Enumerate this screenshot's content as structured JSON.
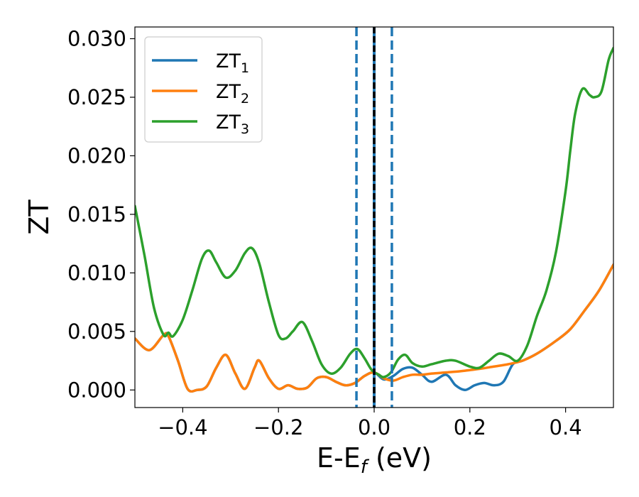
{
  "chart_data": {
    "type": "line",
    "xlabel": "E-E",
    "xlabel_sub": "f",
    "xlabel_unit": " (eV)",
    "ylabel": "ZT",
    "xlim": [
      -0.5,
      0.5
    ],
    "ylim": [
      -0.0015,
      0.031
    ],
    "xticks": [
      -0.4,
      -0.2,
      0.0,
      0.2,
      0.4
    ],
    "xtick_labels": [
      "−0.4",
      "−0.2",
      "0.0",
      "0.2",
      "0.4"
    ],
    "yticks": [
      0.0,
      0.005,
      0.01,
      0.015,
      0.02,
      0.025,
      0.03
    ],
    "ytick_labels": [
      "0.000",
      "0.005",
      "0.010",
      "0.015",
      "0.020",
      "0.025",
      "0.030"
    ],
    "grid": false,
    "legend_position": "top-left",
    "vlines": [
      {
        "x": -0.037,
        "style": "dashed",
        "color": "#1f77b4"
      },
      {
        "x": 0.0,
        "style": "solid",
        "color": "#1f77b4"
      },
      {
        "x": 0.0,
        "style": "dashed",
        "color": "#000000"
      },
      {
        "x": 0.037,
        "style": "dashed",
        "color": "#1f77b4"
      }
    ],
    "series": [
      {
        "name": "ZT",
        "name_sub": "1",
        "color": "#1f77b4",
        "points": [
          [
            -0.5,
            0.0044
          ],
          [
            -0.47,
            0.0034
          ],
          [
            -0.44,
            0.0047
          ],
          [
            -0.43,
            0.0046
          ],
          [
            -0.41,
            0.0025
          ],
          [
            -0.39,
            0.0001
          ],
          [
            -0.37,
            0.0
          ],
          [
            -0.35,
            0.0003
          ],
          [
            -0.33,
            0.0019
          ],
          [
            -0.31,
            0.003
          ],
          [
            -0.29,
            0.0014
          ],
          [
            -0.27,
            0.0001
          ],
          [
            -0.25,
            0.0019
          ],
          [
            -0.24,
            0.0025
          ],
          [
            -0.22,
            0.001
          ],
          [
            -0.2,
            0.0001
          ],
          [
            -0.18,
            0.0004
          ],
          [
            -0.16,
            0.0001
          ],
          [
            -0.14,
            0.0002
          ],
          [
            -0.12,
            0.001
          ],
          [
            -0.1,
            0.0011
          ],
          [
            -0.08,
            0.0007
          ],
          [
            -0.06,
            0.0004
          ],
          [
            -0.04,
            0.0006
          ],
          [
            -0.02,
            0.0012
          ],
          [
            0.0,
            0.0015
          ],
          [
            0.02,
            0.0009
          ],
          [
            0.04,
            0.0012
          ],
          [
            0.06,
            0.0018
          ],
          [
            0.08,
            0.0019
          ],
          [
            0.1,
            0.0013
          ],
          [
            0.12,
            0.0007
          ],
          [
            0.15,
            0.0013
          ],
          [
            0.17,
            0.0004
          ],
          [
            0.19,
            0.0
          ],
          [
            0.21,
            0.0004
          ],
          [
            0.23,
            0.0006
          ],
          [
            0.25,
            0.0004
          ],
          [
            0.27,
            0.0007
          ],
          [
            0.29,
            0.0022
          ],
          [
            0.31,
            0.0025
          ],
          [
            0.34,
            0.0031
          ],
          [
            0.38,
            0.0042
          ],
          [
            0.41,
            0.0052
          ],
          [
            0.44,
            0.0068
          ],
          [
            0.47,
            0.0085
          ],
          [
            0.5,
            0.0107
          ]
        ]
      },
      {
        "name": "ZT",
        "name_sub": "2",
        "color": "#ff7f0e",
        "points": [
          [
            -0.5,
            0.0044
          ],
          [
            -0.47,
            0.0034
          ],
          [
            -0.44,
            0.0047
          ],
          [
            -0.43,
            0.0046
          ],
          [
            -0.41,
            0.0025
          ],
          [
            -0.39,
            0.0001
          ],
          [
            -0.37,
            0.0
          ],
          [
            -0.35,
            0.0003
          ],
          [
            -0.33,
            0.0019
          ],
          [
            -0.31,
            0.003
          ],
          [
            -0.29,
            0.0014
          ],
          [
            -0.27,
            0.0001
          ],
          [
            -0.25,
            0.0019
          ],
          [
            -0.24,
            0.0025
          ],
          [
            -0.22,
            0.001
          ],
          [
            -0.2,
            0.0001
          ],
          [
            -0.18,
            0.0004
          ],
          [
            -0.16,
            0.0001
          ],
          [
            -0.14,
            0.0002
          ],
          [
            -0.12,
            0.001
          ],
          [
            -0.1,
            0.0011
          ],
          [
            -0.08,
            0.0007
          ],
          [
            -0.06,
            0.0004
          ],
          [
            -0.04,
            0.0006
          ],
          [
            -0.02,
            0.0012
          ],
          [
            0.0,
            0.0015
          ],
          [
            0.02,
            0.001
          ],
          [
            0.04,
            0.0008
          ],
          [
            0.06,
            0.0011
          ],
          [
            0.08,
            0.0013
          ],
          [
            0.1,
            0.0013
          ],
          [
            0.12,
            0.0014
          ],
          [
            0.15,
            0.0015
          ],
          [
            0.18,
            0.0016
          ],
          [
            0.2,
            0.0017
          ],
          [
            0.22,
            0.0018
          ],
          [
            0.25,
            0.002
          ],
          [
            0.28,
            0.0022
          ],
          [
            0.31,
            0.0025
          ],
          [
            0.34,
            0.0031
          ],
          [
            0.38,
            0.0042
          ],
          [
            0.41,
            0.0052
          ],
          [
            0.44,
            0.0068
          ],
          [
            0.47,
            0.0085
          ],
          [
            0.5,
            0.0107
          ]
        ]
      },
      {
        "name": "ZT",
        "name_sub": "3",
        "color": "#2ca02c",
        "points": [
          [
            -0.5,
            0.0157
          ],
          [
            -0.48,
            0.0115
          ],
          [
            -0.46,
            0.007
          ],
          [
            -0.44,
            0.0047
          ],
          [
            -0.43,
            0.0049
          ],
          [
            -0.42,
            0.0046
          ],
          [
            -0.4,
            0.006
          ],
          [
            -0.38,
            0.0085
          ],
          [
            -0.36,
            0.0112
          ],
          [
            -0.345,
            0.0119
          ],
          [
            -0.33,
            0.0109
          ],
          [
            -0.31,
            0.0096
          ],
          [
            -0.29,
            0.0102
          ],
          [
            -0.27,
            0.0117
          ],
          [
            -0.255,
            0.0121
          ],
          [
            -0.24,
            0.0108
          ],
          [
            -0.22,
            0.0075
          ],
          [
            -0.2,
            0.0047
          ],
          [
            -0.185,
            0.0044
          ],
          [
            -0.17,
            0.005
          ],
          [
            -0.15,
            0.0058
          ],
          [
            -0.13,
            0.0042
          ],
          [
            -0.11,
            0.0022
          ],
          [
            -0.09,
            0.0014
          ],
          [
            -0.07,
            0.0019
          ],
          [
            -0.05,
            0.0031
          ],
          [
            -0.035,
            0.0035
          ],
          [
            -0.02,
            0.0027
          ],
          [
            -0.005,
            0.0017
          ],
          [
            0.01,
            0.0013
          ],
          [
            0.02,
            0.0011
          ],
          [
            0.035,
            0.0015
          ],
          [
            0.05,
            0.0026
          ],
          [
            0.065,
            0.003
          ],
          [
            0.08,
            0.0023
          ],
          [
            0.1,
            0.002
          ],
          [
            0.12,
            0.0022
          ],
          [
            0.15,
            0.0025
          ],
          [
            0.17,
            0.0025
          ],
          [
            0.2,
            0.002
          ],
          [
            0.22,
            0.0019
          ],
          [
            0.24,
            0.0025
          ],
          [
            0.26,
            0.0031
          ],
          [
            0.28,
            0.0029
          ],
          [
            0.3,
            0.0025
          ],
          [
            0.32,
            0.0038
          ],
          [
            0.34,
            0.0063
          ],
          [
            0.36,
            0.0085
          ],
          [
            0.38,
            0.0118
          ],
          [
            0.4,
            0.017
          ],
          [
            0.41,
            0.0205
          ],
          [
            0.42,
            0.0236
          ],
          [
            0.435,
            0.0257
          ],
          [
            0.45,
            0.0252
          ],
          [
            0.46,
            0.025
          ],
          [
            0.475,
            0.0255
          ],
          [
            0.49,
            0.0282
          ],
          [
            0.5,
            0.0292
          ]
        ]
      }
    ]
  }
}
